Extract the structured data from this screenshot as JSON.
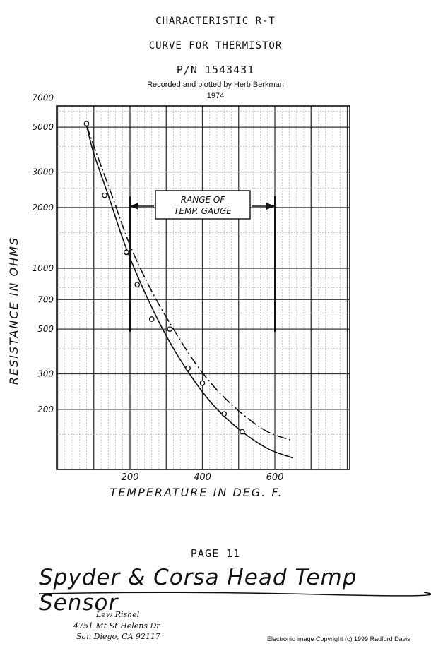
{
  "header": {
    "title_line1": "CHARACTERISTIC  R-T",
    "title_line2": "CURVE FOR THERMISTOR",
    "part_number": "P/N 1543431",
    "recorded_by": "Recorded and plotted by Herb Berkman",
    "year": "1974"
  },
  "chart_data": {
    "type": "scatter",
    "xlabel": "TEMPERATURE  IN  DEG. F.",
    "ylabel": "RESISTANCE  IN  OHMS",
    "x_ticks": [
      "200",
      "400",
      "600"
    ],
    "y_ticks": [
      "7000",
      "5000",
      "3000",
      "2000",
      "1000",
      "700",
      "500",
      "300",
      "200"
    ],
    "y_scale": "log",
    "xlim": [
      0,
      800
    ],
    "ylim": [
      100,
      10000
    ],
    "grid": true,
    "annotation": "RANGE OF TEMP. GAUGE",
    "gauge_range": [
      200,
      600
    ],
    "series": [
      {
        "style": "solid",
        "points": [
          [
            80,
            5200
          ],
          [
            130,
            2300
          ],
          [
            190,
            1200
          ],
          [
            220,
            830
          ],
          [
            260,
            560
          ],
          [
            310,
            500
          ],
          [
            360,
            320
          ],
          [
            400,
            270
          ],
          [
            460,
            190
          ],
          [
            510,
            155
          ]
        ],
        "curve": [
          [
            80,
            5100
          ],
          [
            100,
            3700
          ],
          [
            140,
            2300
          ],
          [
            190,
            1250
          ],
          [
            250,
            700
          ],
          [
            310,
            430
          ],
          [
            370,
            290
          ],
          [
            430,
            210
          ],
          [
            500,
            160
          ],
          [
            580,
            128
          ],
          [
            650,
            115
          ]
        ]
      },
      {
        "style": "dashed",
        "curve": [
          [
            80,
            5100
          ],
          [
            110,
            3600
          ],
          [
            150,
            2300
          ],
          [
            200,
            1300
          ],
          [
            260,
            770
          ],
          [
            320,
            500
          ],
          [
            380,
            340
          ],
          [
            440,
            250
          ],
          [
            510,
            190
          ],
          [
            580,
            155
          ],
          [
            650,
            140
          ]
        ]
      }
    ]
  },
  "footer": {
    "page": "PAGE 11",
    "handwritten": "Spyder & Corsa Head Temp Sensor",
    "address_name": "Lew Rishel",
    "address_street": "4751 Mt St Helens Dr",
    "address_city": "San Diego, CA 92117",
    "copyright": "Electronic image Copyright (c) 1999 Radford Davis"
  }
}
